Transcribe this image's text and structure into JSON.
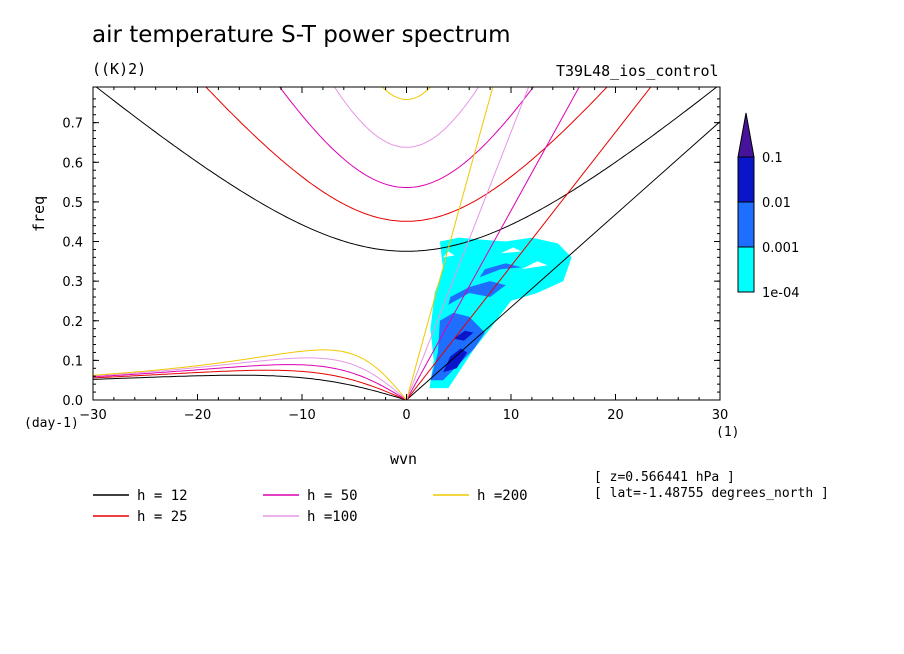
{
  "title": "air temperature S-T power spectrum",
  "units_label": "((K)2)",
  "experiment": "T39L48_ios_control",
  "info": [
    "[ z=0.566441 hPa ]",
    "[ lat=-1.48755 degrees_north ]"
  ],
  "chart_data": {
    "type": "contour",
    "xlabel": "wvn",
    "ylabel": "freq",
    "x_unit": "(1)",
    "y_unit": "(day-1)",
    "xlim": [
      -30,
      30
    ],
    "ylim": [
      0,
      0.79
    ],
    "x_ticks": [
      -30,
      -20,
      -10,
      0,
      10,
      20,
      30
    ],
    "y_ticks": [
      0.0,
      0.1,
      0.2,
      0.3,
      0.4,
      0.5,
      0.6,
      0.7
    ],
    "y_tick_labels": [
      "0.0",
      "0.1",
      "0.2",
      "0.3",
      "0.4",
      "0.5",
      "0.6",
      "0.7"
    ],
    "colorbar": {
      "levels": [
        "1e-04",
        "0.001",
        "0.01",
        "0.1"
      ],
      "colors": [
        "#00ffff",
        "#1e6eff",
        "#0a14c8",
        "#46149b"
      ]
    },
    "dispersion_curves": [
      {
        "label": "h = 12",
        "h": 12,
        "color": "#000000"
      },
      {
        "label": "h = 25",
        "h": 25,
        "color": "#e60000"
      },
      {
        "label": "h = 50",
        "h": 50,
        "color": "#dc00b4"
      },
      {
        "label": "h =100",
        "h": 100,
        "color": "#e696e6"
      },
      {
        "label": "h =200",
        "h": 200,
        "color": "#f0c800"
      }
    ],
    "spectrum_region": {
      "description_values": {
        "wvn_range": [
          2,
          16
        ],
        "freq_range": [
          0.03,
          0.42
        ],
        "max_level": "0.01"
      }
    }
  }
}
